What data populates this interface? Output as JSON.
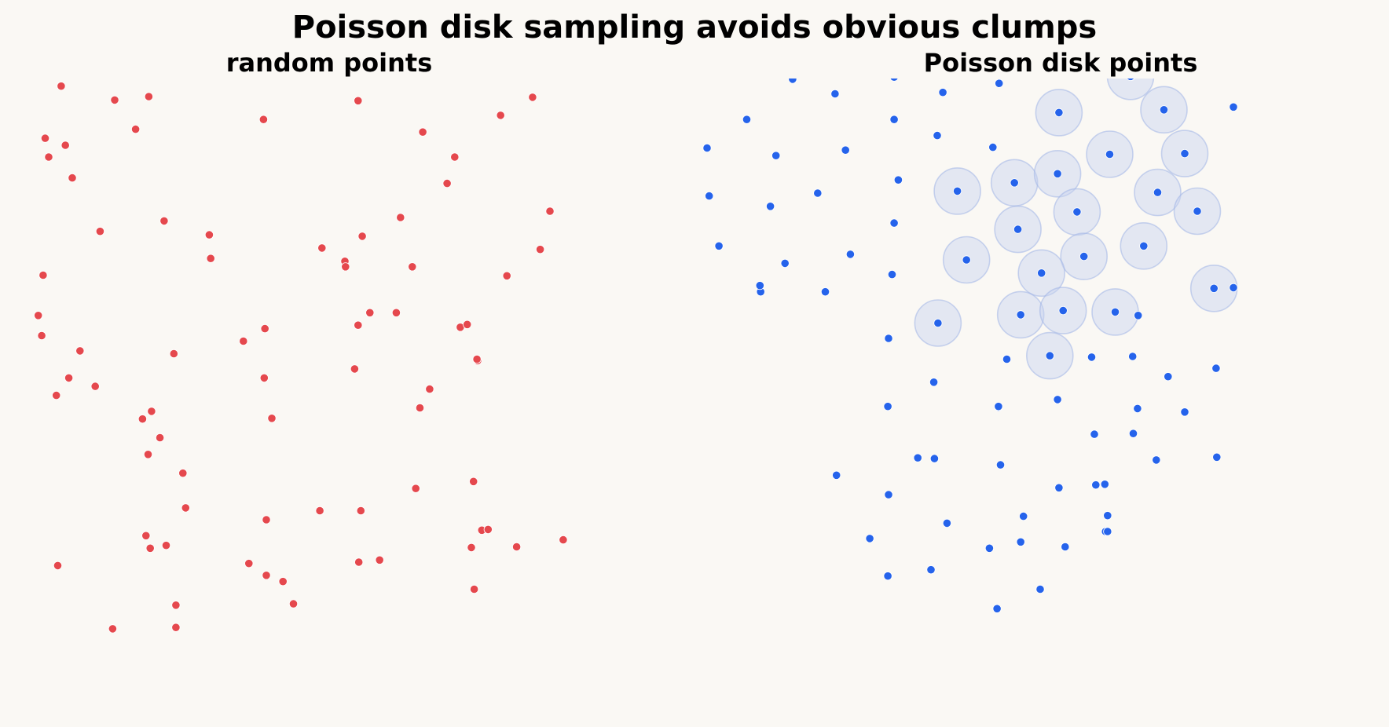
{
  "chart_data": {
    "type": "scatter",
    "title": "Poisson disk sampling avoids obvious clumps",
    "colors": {
      "background": "#faf8f4",
      "random": "#e5484d",
      "poisson": "#2563eb",
      "disk": "#c7d2f0"
    },
    "panels": [
      {
        "title": "random points",
        "series": [
          {
            "color": "#e5484d",
            "points": [
              [
                88,
                124
              ],
              [
                165,
                144
              ],
              [
                214,
                139
              ],
              [
                195,
                186
              ],
              [
                65,
                199
              ],
              [
                94,
                209
              ],
              [
                70,
                226
              ],
              [
                104,
                256
              ],
              [
                144,
                333
              ],
              [
                236,
                318
              ],
              [
                301,
                338
              ],
              [
                303,
                372
              ],
              [
                62,
                396
              ],
              [
                55,
                454
              ],
              [
                60,
                483
              ],
              [
                115,
                505
              ],
              [
                99,
                544
              ],
              [
                137,
                556
              ],
              [
                81,
                569
              ],
              [
                250,
                509
              ],
              [
                218,
                592
              ],
              [
                205,
                603
              ],
              [
                230,
                630
              ],
              [
                213,
                654
              ],
              [
                263,
                681
              ],
              [
                267,
                731
              ],
              [
                210,
                771
              ],
              [
                216,
                789
              ],
              [
                239,
                785
              ],
              [
                83,
                814
              ],
              [
                162,
                905
              ],
              [
                253,
                903
              ],
              [
                253,
                871
              ],
              [
                379,
                172
              ],
              [
                381,
                473
              ],
              [
                350,
                491
              ],
              [
                380,
                544
              ],
              [
                391,
                602
              ],
              [
                383,
                748
              ],
              [
                358,
                811
              ],
              [
                383,
                828
              ],
              [
                407,
                837
              ],
              [
                422,
                869
              ],
              [
                460,
                735
              ],
              [
                463,
                357
              ],
              [
                496,
                376
              ],
              [
                497,
                384
              ],
              [
                521,
                340
              ],
              [
                532,
                450
              ],
              [
                515,
                468
              ],
              [
                510,
                531
              ],
              [
                618,
                560
              ],
              [
                604,
                587
              ],
              [
                598,
                703
              ],
              [
                519,
                735
              ],
              [
                516,
                809
              ],
              [
                546,
                806
              ],
              [
                576,
                313
              ],
              [
                593,
                384
              ],
              [
                570,
                450
              ],
              [
                662,
                471
              ],
              [
                672,
                467
              ],
              [
                687,
                519
              ],
              [
                686,
                517
              ],
              [
                643,
                264
              ],
              [
                654,
                226
              ],
              [
                608,
                190
              ],
              [
                515,
                145
              ],
              [
                720,
                166
              ],
              [
                766,
                140
              ],
              [
                791,
                304
              ],
              [
                777,
                359
              ],
              [
                729,
                397
              ],
              [
                681,
                693
              ],
              [
                678,
                788
              ],
              [
                693,
                763
              ],
              [
                702,
                762
              ],
              [
                743,
                787
              ],
              [
                810,
                777
              ],
              [
                682,
                848
              ]
            ]
          }
        ]
      },
      {
        "title": "Poisson disk points",
        "series": [
          {
            "color": "#2563eb",
            "points": [
              [
                1140,
                114
              ],
              [
                1201,
                135
              ],
              [
                1286,
                111
              ],
              [
                1356,
                133
              ],
              [
                1437,
                120
              ],
              [
                1627,
                110
              ],
              [
                1074,
                172
              ],
              [
                1286,
                172
              ],
              [
                1348,
                195
              ],
              [
                1017,
                213
              ],
              [
                1116,
                224
              ],
              [
                1216,
                216
              ],
              [
                1428,
                212
              ],
              [
                1020,
                282
              ],
              [
                1108,
                297
              ],
              [
                1176,
                278
              ],
              [
                1292,
                259
              ],
              [
                1286,
                321
              ],
              [
                1034,
                354
              ],
              [
                1129,
                379
              ],
              [
                1223,
                366
              ],
              [
                1283,
                395
              ],
              [
                974,
                411
              ],
              [
                1094,
                420
              ],
              [
                1093,
                411
              ],
              [
                1187,
                420
              ],
              [
                1278,
                487
              ],
              [
                1343,
                550
              ],
              [
                1448,
                517
              ],
              [
                1436,
                586
              ],
              [
                1570,
                514
              ],
              [
                1637,
                454
              ],
              [
                1629,
                513
              ],
              [
                1636,
                588
              ],
              [
                1630,
                624
              ],
              [
                1680,
                542
              ],
              [
                1704,
                593
              ],
              [
                1774,
                154
              ],
              [
                1774,
                414
              ],
              [
                1749,
                530
              ],
              [
                1750,
                658
              ],
              [
                1574,
                625
              ],
              [
                1521,
                575
              ],
              [
                1576,
                698
              ],
              [
                1277,
                585
              ],
              [
                1436,
                585
              ],
              [
                1344,
                660
              ],
              [
                1439,
                669
              ],
              [
                1203,
                684
              ],
              [
                1278,
                712
              ],
              [
                1251,
                775
              ],
              [
                1320,
                659
              ],
              [
                1362,
                753
              ],
              [
                1472,
                743
              ],
              [
                1468,
                780
              ],
              [
                1523,
                702
              ],
              [
                1589,
                697
              ],
              [
                1590,
                765
              ],
              [
                1663,
                662
              ],
              [
                1593,
                742
              ],
              [
                1593,
                765
              ],
              [
                1277,
                829
              ],
              [
                1339,
                820
              ],
              [
                1423,
                789
              ],
              [
                1532,
                787
              ],
              [
                1496,
                848
              ],
              [
                1434,
                876
              ]
            ]
          },
          {
            "color": "#2563eb",
            "points": [
              [
                1626,
                110
              ],
              [
                1674,
                158
              ],
              [
                1523,
                162
              ],
              [
                1596,
                222
              ],
              [
                1704,
                221
              ],
              [
                1377,
                275
              ],
              [
                1459,
                263
              ],
              [
                1521,
                250
              ],
              [
                1665,
                277
              ],
              [
                1549,
                305
              ],
              [
                1722,
                304
              ],
              [
                1464,
                330
              ],
              [
                1390,
                374
              ],
              [
                1559,
                369
              ],
              [
                1645,
                354
              ],
              [
                1498,
                393
              ],
              [
                1746,
                415
              ],
              [
                1349,
                465
              ],
              [
                1468,
                453
              ],
              [
                1529,
                447
              ],
              [
                1604,
                449
              ],
              [
                1510,
                512
              ]
            ]
          }
        ]
      }
    ]
  }
}
